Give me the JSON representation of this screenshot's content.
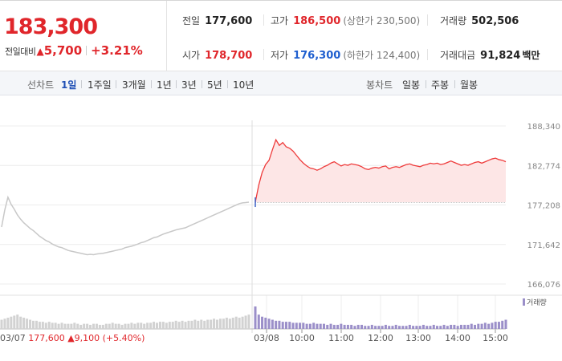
{
  "summary": {
    "price": "183,300",
    "change_label": "전일대비",
    "change_arrow": "▲",
    "change_amount": "5,700",
    "change_pct": "+3.21%",
    "stats": {
      "prev_close": {
        "label": "전일",
        "value": "177,600"
      },
      "high": {
        "label": "고가",
        "value": "186,500",
        "sub": "(상한가 230,500)"
      },
      "volume": {
        "label": "거래량",
        "value": "502,506"
      },
      "open": {
        "label": "시가",
        "value": "178,700"
      },
      "low": {
        "label": "저가",
        "value": "176,300",
        "sub": "(하한가 124,400)"
      },
      "turnover": {
        "label": "거래대금",
        "value": "91,824",
        "unit": "백만"
      }
    }
  },
  "tabs": {
    "line_label": "선차트",
    "line_tabs": [
      "1일",
      "1주일",
      "3개월",
      "1년",
      "3년",
      "5년",
      "10년"
    ],
    "active": "1일",
    "candle_label": "봉차트",
    "candle_tabs": [
      "일봉",
      "주봉",
      "월봉"
    ]
  },
  "chart_data": {
    "type": "line",
    "ylim": [
      166076,
      188340
    ],
    "yticks": [
      "188,340",
      "182,774",
      "177,208",
      "171,642",
      "166,076"
    ],
    "prev_close_line": 177600,
    "xtick_labels": [
      "03/08",
      "10:00",
      "11:00",
      "12:00",
      "13:00",
      "14:00",
      "15:00"
    ],
    "prev_day": {
      "date_label": "03/07",
      "footer_close": "177,600",
      "footer_arrow": "▲",
      "footer_change": "9,100 (+5.40%)",
      "color": "#c8c8c8",
      "values": [
        174100,
        176500,
        178300,
        177300,
        176600,
        175800,
        175200,
        174700,
        174300,
        173900,
        173600,
        173200,
        172800,
        172500,
        172200,
        172000,
        171700,
        171500,
        171300,
        171200,
        171000,
        170800,
        170700,
        170600,
        170500,
        170400,
        170300,
        170200,
        170250,
        170200,
        170300,
        170350,
        170400,
        170500,
        170600,
        170700,
        170800,
        170900,
        171000,
        171200,
        171300,
        171400,
        171550,
        171700,
        171900,
        172000,
        172200,
        172400,
        172600,
        172700,
        172900,
        173100,
        173250,
        173400,
        173550,
        173700,
        173800,
        173900,
        174000,
        174200,
        174400,
        174600,
        174800,
        175000,
        175200,
        175400,
        175600,
        175800,
        176000,
        176200,
        176400,
        176600,
        176800,
        177000,
        177200,
        177400,
        177500,
        177550,
        177600
      ]
    },
    "today": {
      "date_label": "03/08",
      "color": "#ee3b3b",
      "fill": "#fde6e6",
      "values": [
        177600,
        180000,
        181800,
        182900,
        183500,
        185000,
        186400,
        185600,
        186000,
        185400,
        185200,
        184800,
        184200,
        183600,
        183100,
        182700,
        182400,
        182300,
        182100,
        182300,
        182600,
        182800,
        183100,
        183300,
        183000,
        182700,
        182900,
        182800,
        183000,
        182900,
        182800,
        182600,
        182300,
        182200,
        182400,
        182500,
        182400,
        182600,
        182700,
        182300,
        182500,
        182600,
        182500,
        182700,
        182900,
        183000,
        182800,
        182700,
        182600,
        182800,
        182900,
        183100,
        183000,
        183100,
        182900,
        183000,
        183200,
        183400,
        183200,
        183000,
        182800,
        182900,
        182800,
        183000,
        183200,
        183300,
        183100,
        183300,
        183500,
        183700,
        183800,
        183600,
        183500,
        183300
      ]
    },
    "volume_legend": "거래량",
    "volume_color": "#9b8fc9",
    "prev_volume": [
      9,
      10,
      11,
      12,
      13,
      14,
      12,
      11,
      10,
      9,
      8,
      8,
      7,
      7,
      6,
      7,
      6,
      6,
      5,
      6,
      5,
      5,
      5,
      6,
      5,
      4,
      5,
      5,
      4,
      5,
      5,
      4,
      4,
      5,
      5,
      6,
      5,
      5,
      4,
      5,
      5,
      6,
      5,
      6,
      6,
      5,
      6,
      6,
      7,
      6,
      7,
      7,
      6,
      7,
      7,
      8,
      7,
      8,
      7,
      8,
      8,
      9,
      8,
      9,
      8,
      9,
      9,
      10,
      9,
      10,
      10,
      11,
      10,
      11,
      12,
      11,
      12,
      13,
      14
    ],
    "today_volume": [
      22,
      14,
      12,
      11,
      10,
      9,
      8,
      8,
      7,
      7,
      7,
      6,
      6,
      6,
      6,
      5,
      5,
      6,
      5,
      5,
      5,
      4,
      5,
      4,
      4,
      5,
      4,
      4,
      4,
      3,
      4,
      4,
      3,
      3,
      4,
      3,
      3,
      3,
      4,
      3,
      3,
      4,
      3,
      3,
      3,
      4,
      3,
      3,
      3,
      4,
      3,
      3,
      4,
      3,
      3,
      4,
      3,
      4,
      4,
      3,
      4,
      4,
      4,
      5,
      4,
      5,
      5,
      6,
      5,
      6,
      7,
      7,
      8,
      9
    ]
  }
}
